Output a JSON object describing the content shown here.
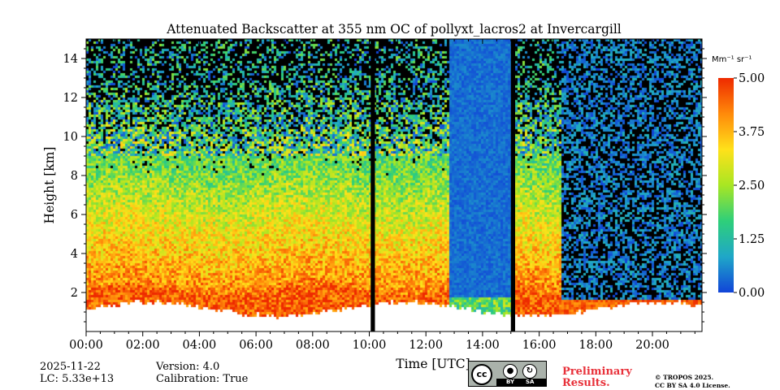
{
  "chart_data": {
    "type": "heatmap",
    "title": "Attenuated Backscatter at 355 nm OC of pollyxt_lacros2 at Invercargill",
    "xlabel": "Time [UTC]",
    "ylabel": "Height [km]",
    "xlim": [
      0,
      21.75
    ],
    "ylim": [
      0,
      15
    ],
    "x_ticks": [
      0,
      2,
      4,
      6,
      8,
      10,
      12,
      14,
      16,
      18,
      20
    ],
    "x_tick_labels": [
      "00:00",
      "02:00",
      "04:00",
      "06:00",
      "08:00",
      "10:00",
      "12:00",
      "14:00",
      "16:00",
      "18:00",
      "20:00"
    ],
    "y_ticks": [
      2,
      4,
      6,
      8,
      10,
      12,
      14
    ],
    "y_tick_labels": [
      "2",
      "4",
      "6",
      "8",
      "10",
      "12",
      14
    ],
    "colorbar": {
      "unit": "Mm⁻¹ sr⁻¹",
      "range": [
        0,
        5
      ],
      "ticks": [
        0,
        1.25,
        2.5,
        3.75,
        5
      ],
      "tick_labels": [
        "0.00",
        "1.25",
        "2.50",
        "3.75",
        "5.00"
      ],
      "colors": [
        "#1144d8",
        "#1fa7c8",
        "#2ecf7a",
        "#a8e623",
        "#ffe11a",
        "#ff8a0a",
        "#ee2a00"
      ]
    },
    "no_data_intervals": [
      [
        10.05,
        10.2
      ],
      [
        15.0,
        15.15
      ]
    ],
    "cloud_free_intervals": [
      [
        12.8,
        15.0
      ],
      [
        16.75,
        21.75
      ]
    ]
  },
  "meta": {
    "date": "2025-11-22",
    "lc": "LC: 5.33e+13",
    "version": "Version: 4.0",
    "calibration": "Calibration: True"
  },
  "license": {
    "badge_cc": "cc",
    "badge_by": "BY",
    "badge_sa": "SA",
    "preliminary_line1": "Preliminary",
    "preliminary_line2": "Results.",
    "copyright_line1": "© TROPOS 2025.",
    "copyright_line2": "CC BY SA 4.0 License."
  }
}
